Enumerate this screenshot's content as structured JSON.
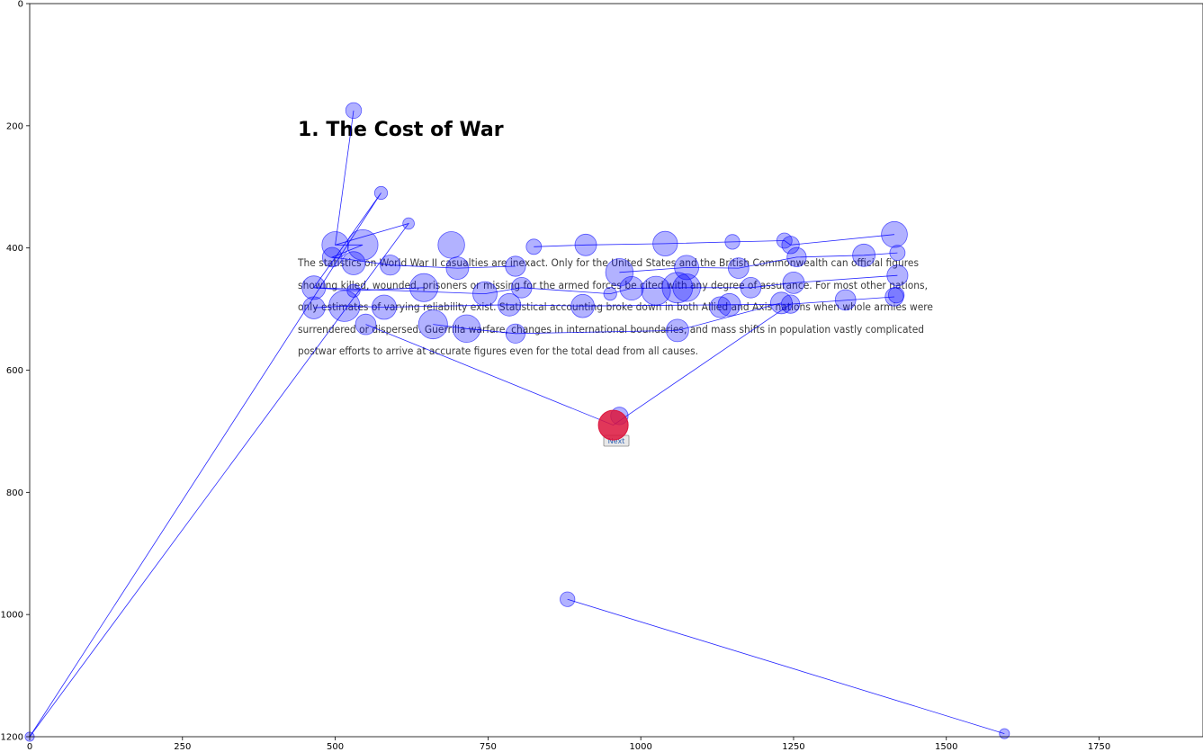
{
  "colors": {
    "fixation": "#0000ff",
    "fixation_fill_opacity": 0.3,
    "saccade": "#0000ff",
    "current_fixation": "#dc143c",
    "text": "#3a3a3a",
    "title": "#000000"
  },
  "stimulus": {
    "title": "1. The Cost of War",
    "paragraph_lines": [
      "The statistics on World War II casualties are inexact. Only for the United States and the British Commonwealth can official figures",
      "showing killed, wounded, prisoners or missing for the armed forces be cited with any degree of assurance. For most other nations,",
      "only estimates of varying reliability exist. Statistical accounting broke down in both Allied and Axis nations when whole armies were",
      "surrendered or dispersed. Guerrilla warfare, changes in international boundaries, and mass shifts in population vastly complicated",
      "postwar efforts to arrive at accurate figures even for the total dead from all causes."
    ],
    "next_button": "Next"
  },
  "chart_data": {
    "type": "scatter",
    "title": "",
    "xlabel": "",
    "ylabel": "",
    "xlim": [
      0,
      1920
    ],
    "ylim": [
      1200,
      0
    ],
    "y_inverted": true,
    "grid": false,
    "xticks": [
      0,
      250,
      500,
      750,
      1000,
      1250,
      1500,
      1750
    ],
    "yticks": [
      0,
      200,
      400,
      600,
      800,
      1000,
      1200
    ],
    "current_fixation": {
      "x": 955,
      "y": 690,
      "d": 650
    },
    "fixations": [
      {
        "x": 0,
        "y": 1200,
        "d": 50
      },
      {
        "x": 620,
        "y": 360,
        "d": 80
      },
      {
        "x": 500,
        "y": 395,
        "d": 420
      },
      {
        "x": 530,
        "y": 175,
        "d": 150
      },
      {
        "x": 575,
        "y": 310,
        "d": 100
      },
      {
        "x": 545,
        "y": 395,
        "d": 560
      },
      {
        "x": 495,
        "y": 415,
        "d": 230
      },
      {
        "x": 530,
        "y": 425,
        "d": 320
      },
      {
        "x": 590,
        "y": 428,
        "d": 240
      },
      {
        "x": 700,
        "y": 433,
        "d": 300
      },
      {
        "x": 795,
        "y": 430,
        "d": 240
      },
      {
        "x": 690,
        "y": 395,
        "d": 420
      },
      {
        "x": 825,
        "y": 398,
        "d": 140
      },
      {
        "x": 910,
        "y": 395,
        "d": 280
      },
      {
        "x": 1040,
        "y": 393,
        "d": 360
      },
      {
        "x": 1150,
        "y": 390,
        "d": 130
      },
      {
        "x": 1235,
        "y": 388,
        "d": 140
      },
      {
        "x": 1245,
        "y": 395,
        "d": 180
      },
      {
        "x": 1415,
        "y": 378,
        "d": 400
      },
      {
        "x": 965,
        "y": 440,
        "d": 450
      },
      {
        "x": 1075,
        "y": 432,
        "d": 350
      },
      {
        "x": 1160,
        "y": 433,
        "d": 250
      },
      {
        "x": 1255,
        "y": 415,
        "d": 220
      },
      {
        "x": 1365,
        "y": 412,
        "d": 300
      },
      {
        "x": 1420,
        "y": 408,
        "d": 140
      },
      {
        "x": 465,
        "y": 465,
        "d": 330
      },
      {
        "x": 530,
        "y": 470,
        "d": 100
      },
      {
        "x": 645,
        "y": 465,
        "d": 470
      },
      {
        "x": 745,
        "y": 475,
        "d": 350
      },
      {
        "x": 805,
        "y": 465,
        "d": 250
      },
      {
        "x": 950,
        "y": 475,
        "d": 100
      },
      {
        "x": 985,
        "y": 466,
        "d": 330
      },
      {
        "x": 1025,
        "y": 470,
        "d": 500
      },
      {
        "x": 1060,
        "y": 465,
        "d": 560
      },
      {
        "x": 1075,
        "y": 465,
        "d": 450
      },
      {
        "x": 1180,
        "y": 465,
        "d": 250
      },
      {
        "x": 1250,
        "y": 457,
        "d": 280
      },
      {
        "x": 1420,
        "y": 445,
        "d": 260
      },
      {
        "x": 465,
        "y": 498,
        "d": 290
      },
      {
        "x": 515,
        "y": 495,
        "d": 570
      },
      {
        "x": 580,
        "y": 497,
        "d": 350
      },
      {
        "x": 785,
        "y": 493,
        "d": 300
      },
      {
        "x": 905,
        "y": 495,
        "d": 320
      },
      {
        "x": 1145,
        "y": 493,
        "d": 300
      },
      {
        "x": 1130,
        "y": 497,
        "d": 260
      },
      {
        "x": 1230,
        "y": 490,
        "d": 280
      },
      {
        "x": 1245,
        "y": 492,
        "d": 200
      },
      {
        "x": 1335,
        "y": 485,
        "d": 250
      },
      {
        "x": 1415,
        "y": 480,
        "d": 200
      },
      {
        "x": 1418,
        "y": 477,
        "d": 150
      },
      {
        "x": 550,
        "y": 525,
        "d": 250
      },
      {
        "x": 660,
        "y": 525,
        "d": 500
      },
      {
        "x": 715,
        "y": 532,
        "d": 450
      },
      {
        "x": 795,
        "y": 540,
        "d": 220
      },
      {
        "x": 1060,
        "y": 535,
        "d": 300
      },
      {
        "x": 965,
        "y": 675,
        "d": 180
      },
      {
        "x": 880,
        "y": 975,
        "d": 130
      },
      {
        "x": 1595,
        "y": 1195,
        "d": 60
      }
    ],
    "saccade_paths": [
      [
        [
          0,
          1200
        ],
        [
          620,
          360
        ],
        [
          500,
          395
        ],
        [
          530,
          175
        ],
        [
          500,
          395
        ],
        [
          545,
          395
        ],
        [
          495,
          415
        ],
        [
          590,
          428
        ],
        [
          700,
          433
        ],
        [
          795,
          430
        ]
      ],
      [
        [
          0,
          1200
        ],
        [
          575,
          310
        ],
        [
          465,
          465
        ],
        [
          530,
          470
        ],
        [
          645,
          465
        ]
      ],
      [
        [
          825,
          398
        ],
        [
          910,
          395
        ],
        [
          1040,
          393
        ],
        [
          1150,
          390
        ],
        [
          1235,
          388
        ],
        [
          1245,
          395
        ],
        [
          1415,
          378
        ]
      ],
      [
        [
          465,
          465
        ],
        [
          745,
          475
        ],
        [
          805,
          465
        ],
        [
          950,
          475
        ],
        [
          985,
          466
        ],
        [
          1075,
          465
        ],
        [
          1180,
          465
        ],
        [
          1250,
          457
        ],
        [
          1420,
          445
        ]
      ],
      [
        [
          965,
          440
        ],
        [
          1075,
          432
        ],
        [
          1160,
          433
        ],
        [
          1255,
          415
        ],
        [
          1365,
          412
        ],
        [
          1420,
          408
        ]
      ],
      [
        [
          465,
          498
        ],
        [
          515,
          495
        ],
        [
          580,
          497
        ],
        [
          785,
          493
        ],
        [
          905,
          495
        ],
        [
          1145,
          493
        ],
        [
          1245,
          492
        ],
        [
          1415,
          480
        ]
      ],
      [
        [
          550,
          525
        ],
        [
          955,
          690
        ],
        [
          1245,
          492
        ]
      ],
      [
        [
          660,
          525
        ],
        [
          715,
          532
        ],
        [
          795,
          540
        ],
        [
          1060,
          535
        ],
        [
          1230,
          490
        ]
      ],
      [
        [
          880,
          975
        ],
        [
          1595,
          1195
        ]
      ]
    ]
  }
}
